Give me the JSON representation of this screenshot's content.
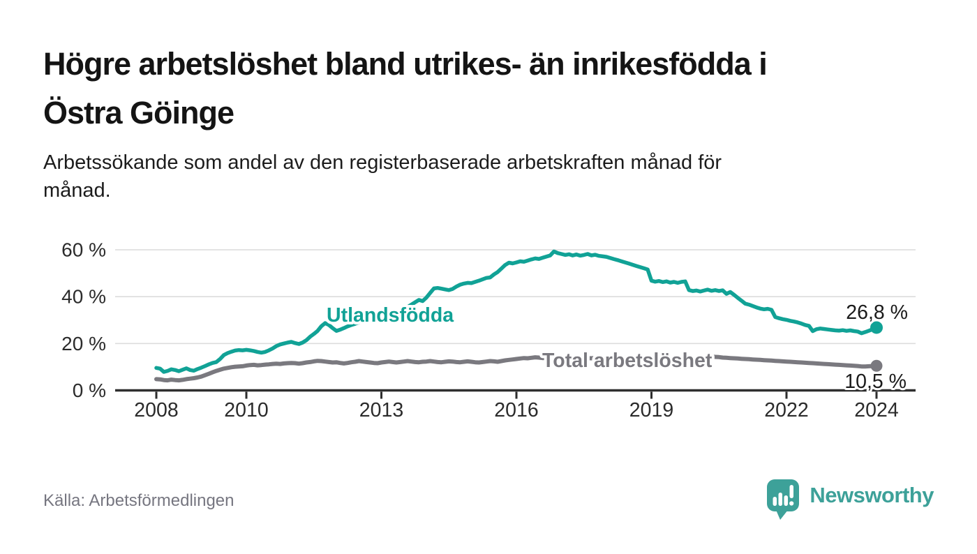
{
  "title": {
    "line1": "Högre arbetslöshet bland utrikes- än inrikesfödda i",
    "line2": "Östra Göinge"
  },
  "subtitle": {
    "line1": "Arbetssökande som andel av den registerbaserade arbetskraften månad för",
    "line2": "månad."
  },
  "source": "Källa: Arbetsförmedlingen",
  "brand": {
    "name": "Newsworthy",
    "color": "#3da199",
    "icon": "speech-bubble-bar-chart-icon"
  },
  "colors": {
    "background": "#ffffff",
    "title_text": "#141414",
    "axis_text": "#2b2b2b",
    "gridline": "#dcdcdc",
    "axis_line": "#2e2e2e",
    "source_text": "#767680",
    "utlandsfodda": "#11a296",
    "total": "#7a797f",
    "value_label_text": "#1a1a1a"
  },
  "chart_data": {
    "type": "line",
    "title": "Högre arbetslöshet bland utrikes- än inrikesfödda i Östra Göinge",
    "subtitle": "Arbetssökande som andel av den registerbaserade arbetskraften månad för månad.",
    "xlabel": "",
    "ylabel": "",
    "x_unit": "month",
    "x_start_year": 2008,
    "x_end_label_year": 2024,
    "ylim": [
      0,
      65
    ],
    "grid": "horizontal",
    "legend_position": "inline-labels",
    "y_ticks": [
      0,
      20,
      40,
      60
    ],
    "y_tick_labels": [
      "0 %",
      "20 %",
      "40 %",
      "60 %"
    ],
    "x_tick_years": [
      2008,
      2010,
      2013,
      2016,
      2019,
      2022,
      2024
    ],
    "x_tick_labels": [
      "2008",
      "2010",
      "2013",
      "2016",
      "2019",
      "2022",
      "2024"
    ],
    "series": [
      {
        "name": "Utlandsfödda",
        "color": "#11a296",
        "end_label": "26,8 %",
        "end_value": 26.8,
        "values": [
          9.6,
          9.3,
          7.9,
          8.3,
          9.0,
          8.7,
          8.2,
          8.8,
          9.4,
          8.7,
          8.4,
          9.1,
          9.7,
          10.4,
          11.1,
          11.7,
          12.1,
          13.4,
          15.1,
          15.9,
          16.5,
          17.0,
          17.2,
          17.1,
          17.3,
          17.1,
          16.8,
          16.4,
          16.1,
          16.4,
          17.1,
          17.9,
          18.9,
          19.6,
          20.0,
          20.4,
          20.7,
          20.2,
          19.8,
          20.4,
          21.4,
          22.9,
          24.1,
          25.4,
          27.4,
          28.7,
          27.9,
          26.6,
          25.4,
          25.9,
          26.6,
          27.3,
          27.9,
          28.4,
          29.0,
          29.5,
          30.1,
          30.5,
          30.1,
          29.6,
          29.9,
          30.6,
          31.3,
          32.1,
          32.9,
          33.7,
          34.6,
          35.6,
          36.6,
          37.6,
          38.6,
          38.1,
          39.6,
          41.6,
          43.5,
          43.7,
          43.4,
          43.1,
          42.8,
          43.3,
          44.3,
          45.1,
          45.6,
          45.9,
          45.8,
          46.3,
          46.8,
          47.4,
          48.0,
          48.2,
          49.5,
          50.5,
          52.0,
          53.5,
          54.5,
          54.2,
          54.6,
          55.1,
          54.9,
          55.4,
          55.9,
          56.3,
          56.1,
          56.6,
          57.1,
          57.6,
          59.3,
          58.6,
          58.2,
          57.8,
          58.1,
          57.6,
          58.0,
          57.5,
          57.8,
          58.2,
          57.6,
          57.9,
          57.4,
          57.2,
          57.0,
          56.5,
          56.0,
          55.6,
          55.1,
          54.6,
          54.1,
          53.6,
          53.1,
          52.6,
          52.1,
          51.6,
          46.8,
          46.4,
          46.7,
          46.2,
          46.5,
          46.0,
          46.3,
          45.9,
          46.3,
          46.5,
          42.8,
          42.4,
          42.6,
          42.2,
          42.6,
          43.0,
          42.5,
          42.8,
          42.4,
          42.7,
          41.2,
          42.0,
          40.8,
          39.5,
          38.3,
          37.0,
          36.6,
          36.0,
          35.4,
          34.9,
          34.6,
          34.8,
          34.4,
          31.3,
          30.8,
          30.4,
          30.1,
          29.7,
          29.4,
          29.0,
          28.5,
          27.9,
          27.5,
          25.3,
          26.1,
          26.4,
          26.2,
          26.0,
          25.8,
          25.6,
          25.5,
          25.7,
          25.4,
          25.6,
          25.3,
          25.1,
          24.4,
          24.9,
          25.5,
          26.1,
          26.8
        ]
      },
      {
        "name": "Total arbetslöshet",
        "color": "#7a797f",
        "end_label": "10,5 %",
        "end_value": 10.5,
        "values": [
          4.8,
          4.7,
          4.4,
          4.3,
          4.6,
          4.4,
          4.3,
          4.5,
          4.8,
          5.0,
          5.2,
          5.5,
          5.9,
          6.5,
          7.1,
          7.7,
          8.3,
          8.8,
          9.3,
          9.6,
          9.9,
          10.1,
          10.2,
          10.3,
          10.6,
          10.8,
          10.9,
          10.7,
          10.8,
          11.0,
          11.1,
          11.3,
          11.4,
          11.3,
          11.5,
          11.6,
          11.7,
          11.6,
          11.4,
          11.6,
          11.9,
          12.1,
          12.4,
          12.6,
          12.5,
          12.3,
          12.1,
          11.9,
          12.0,
          11.7,
          11.5,
          11.7,
          12.0,
          12.2,
          12.5,
          12.3,
          12.1,
          11.9,
          11.7,
          11.6,
          11.9,
          12.1,
          12.3,
          12.1,
          11.9,
          12.1,
          12.3,
          12.5,
          12.3,
          12.1,
          12.0,
          12.2,
          12.3,
          12.5,
          12.3,
          12.1,
          12.0,
          12.2,
          12.4,
          12.3,
          12.1,
          12.0,
          12.2,
          12.4,
          12.2,
          12.0,
          11.9,
          12.1,
          12.3,
          12.5,
          12.4,
          12.2,
          12.5,
          12.8,
          13.0,
          13.2,
          13.4,
          13.6,
          13.8,
          13.7,
          13.9,
          14.1,
          14.0,
          13.8,
          13.9,
          14.1,
          14.2,
          14.0,
          13.8,
          13.9,
          14.1,
          14.0,
          13.8,
          13.9,
          14.0,
          13.8,
          13.7,
          13.9,
          14.0,
          13.8,
          13.9,
          14.0,
          13.8,
          13.7,
          13.8,
          13.9,
          13.7,
          13.6,
          13.7,
          13.8,
          13.6,
          13.5,
          13.6,
          13.7,
          13.5,
          13.4,
          13.5,
          13.6,
          13.4,
          13.3,
          13.4,
          13.5,
          13.3,
          13.2,
          13.5,
          13.8,
          14.0,
          14.2,
          14.4,
          14.3,
          14.2,
          14.0,
          13.9,
          13.8,
          13.7,
          13.6,
          13.5,
          13.4,
          13.3,
          13.2,
          13.1,
          13.0,
          12.9,
          12.8,
          12.7,
          12.6,
          12.5,
          12.4,
          12.3,
          12.2,
          12.1,
          12.0,
          11.9,
          11.8,
          11.7,
          11.6,
          11.5,
          11.4,
          11.3,
          11.2,
          11.1,
          11.0,
          10.9,
          10.8,
          10.7,
          10.6,
          10.5,
          10.4,
          10.2,
          10.2,
          10.3,
          10.4,
          10.5
        ]
      }
    ]
  }
}
